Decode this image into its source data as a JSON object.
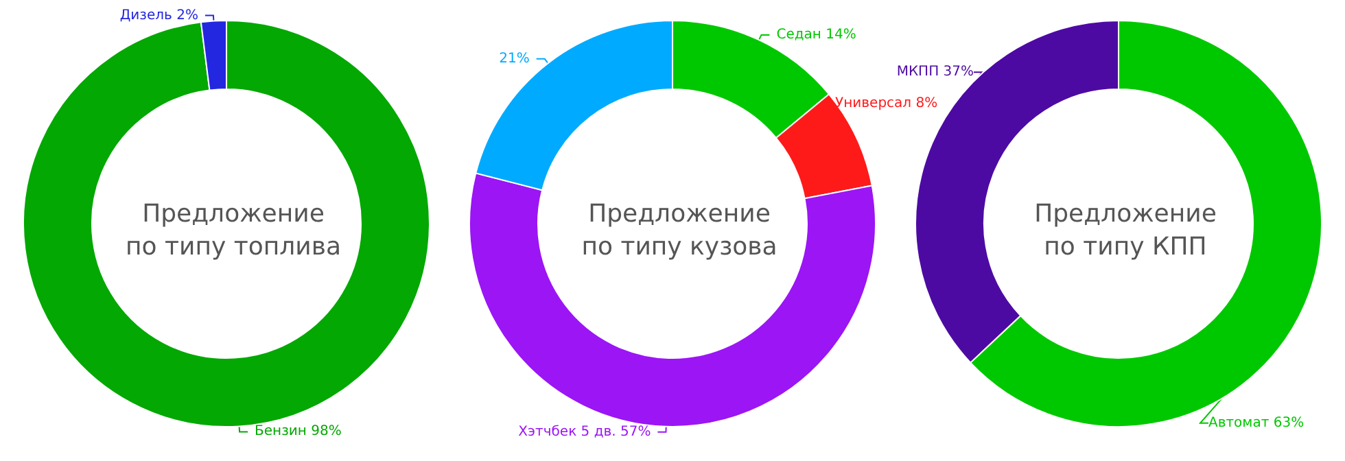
{
  "chart_data": [
    {
      "type": "donut",
      "title": "Предложение\nпо типу топлива",
      "categories": [
        "Бензин",
        "Дизель"
      ],
      "values": [
        98,
        2
      ],
      "value_labels": [
        "98%",
        "2%"
      ],
      "colors": [
        "#03a803",
        "#2427e0"
      ]
    },
    {
      "type": "donut",
      "title": "Предложение\nпо типу кузова",
      "categories": [
        "Седан",
        "Универсал",
        "Хэтчбек 5 дв.",
        null
      ],
      "values": [
        14,
        8,
        57,
        21
      ],
      "value_labels": [
        "14%",
        "8%",
        "57%",
        "21%"
      ],
      "colors": [
        "#00c800",
        "#ff1a1a",
        "#9b15f5",
        "#00aaff"
      ]
    },
    {
      "type": "donut",
      "title": "Предложение\nпо типу КПП",
      "categories": [
        "Автомат",
        "МКПП"
      ],
      "values": [
        63,
        37
      ],
      "value_labels": [
        "63%",
        "37%"
      ],
      "colors": [
        "#00c800",
        "#4d0aa3"
      ]
    }
  ]
}
